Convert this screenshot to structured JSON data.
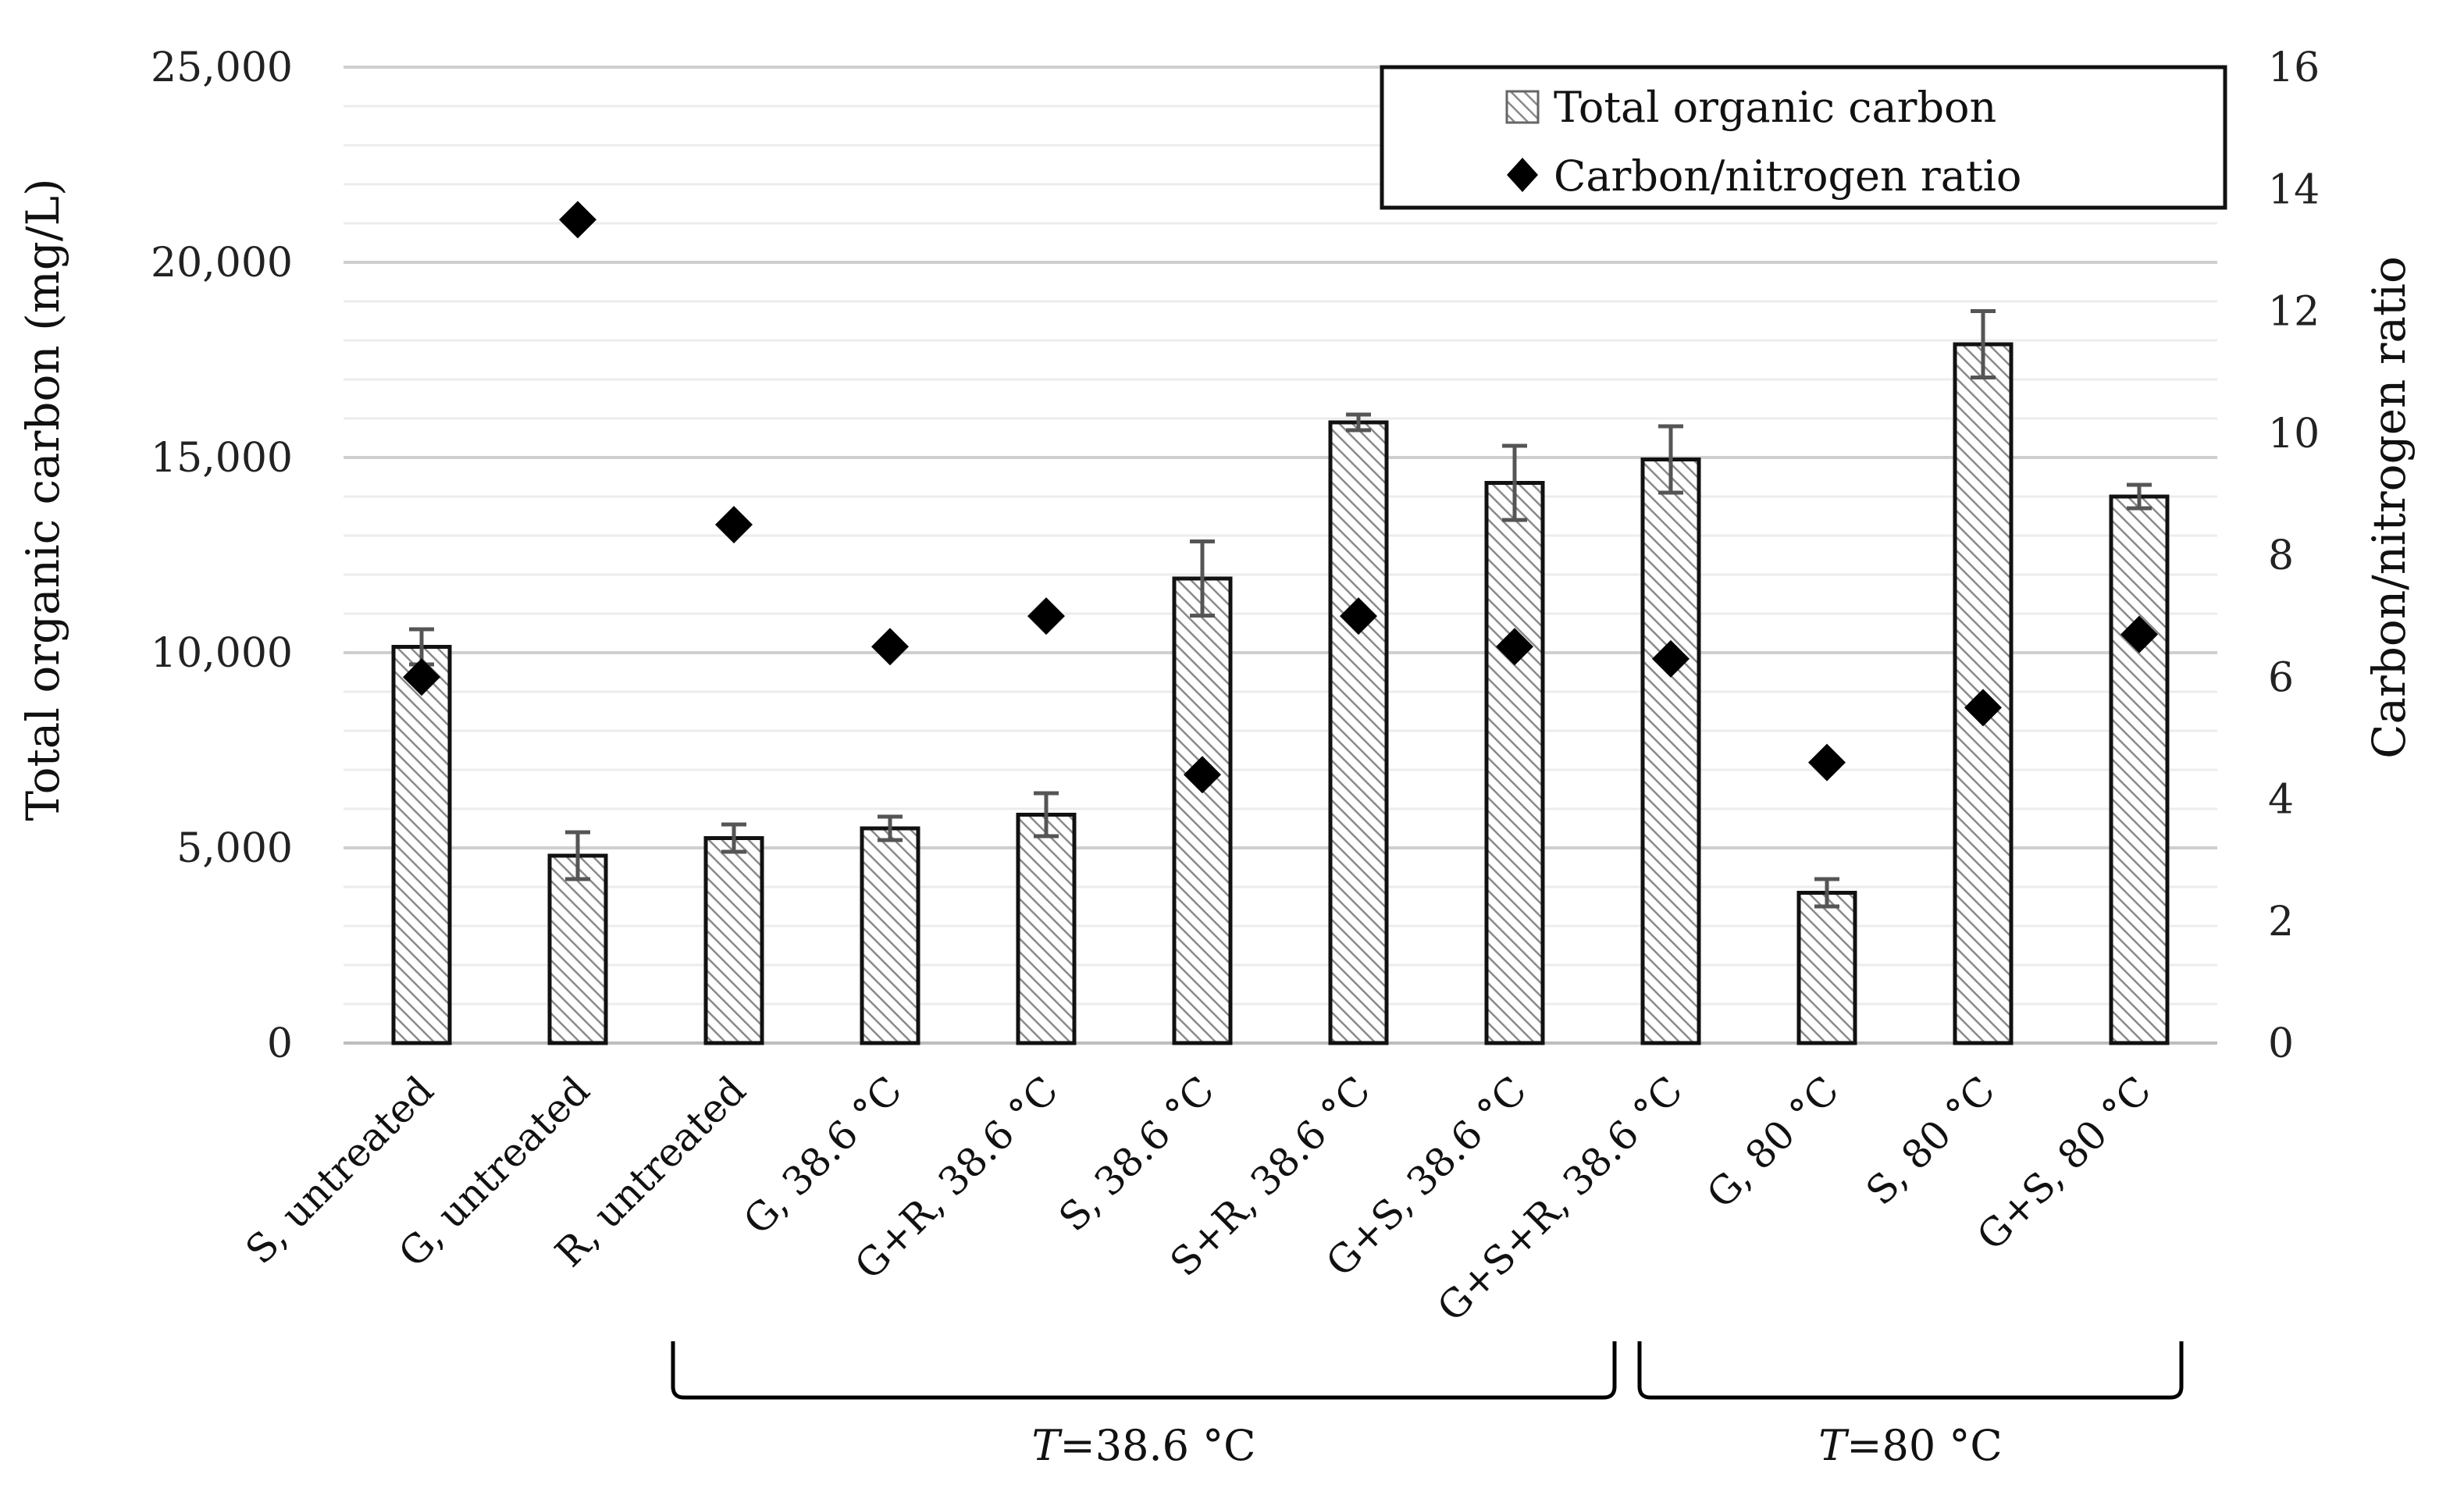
{
  "chart_data": {
    "type": "bar",
    "categories": [
      "S, untreated",
      "G, untreated",
      "R, untreated",
      "G, 38.6 °C",
      "G+R, 38.6 °C",
      "S, 38.6 °C",
      "S+R, 38.6 °C",
      "G+S, 38.6 °C",
      "G+S+R, 38.6 °C",
      "G, 80 °C",
      "S, 80 °C",
      "G+S, 80 °C"
    ],
    "series": [
      {
        "name": "Total organic carbon",
        "kind": "bar",
        "axis": "left",
        "values": [
          10150,
          4800,
          5250,
          5500,
          5850,
          11900,
          15900,
          14350,
          14950,
          3850,
          17900,
          14000
        ],
        "errors": [
          450,
          600,
          350,
          300,
          550,
          950,
          200,
          950,
          850,
          350,
          850,
          300
        ]
      },
      {
        "name": "Carbon/nitrogen ratio",
        "kind": "scatter",
        "axis": "right",
        "values": [
          6.0,
          13.5,
          8.5,
          6.5,
          7.0,
          4.4,
          7.0,
          6.5,
          6.3,
          4.6,
          5.5,
          6.7
        ]
      }
    ],
    "ylabel": "Total organic carbon (mg/L)",
    "y2label": "Carbon/nitrogen ratio",
    "ylim": [
      0,
      25000
    ],
    "y2lim": [
      0,
      16
    ],
    "yticks": [
      0,
      5000,
      10000,
      15000,
      20000,
      25000
    ],
    "ytick_labels": [
      "0",
      "5,000",
      "10,000",
      "15,000",
      "20,000",
      "25,000"
    ],
    "y2ticks": [
      0,
      2,
      4,
      6,
      8,
      10,
      12,
      14,
      16
    ],
    "y2tick_labels": [
      "0",
      "2",
      "4",
      "6",
      "8",
      "10",
      "12",
      "14",
      "16"
    ],
    "grid": true,
    "legend": {
      "position": "top-right",
      "entries": [
        "Total organic carbon",
        "Carbon/nitrogen ratio"
      ]
    },
    "groups": [
      {
        "italic": "T",
        "rest": "=38.6 °C",
        "from": 2,
        "to": 8
      },
      {
        "italic": "T",
        "rest": "=80 °C",
        "from": 9,
        "to": 11
      }
    ]
  }
}
